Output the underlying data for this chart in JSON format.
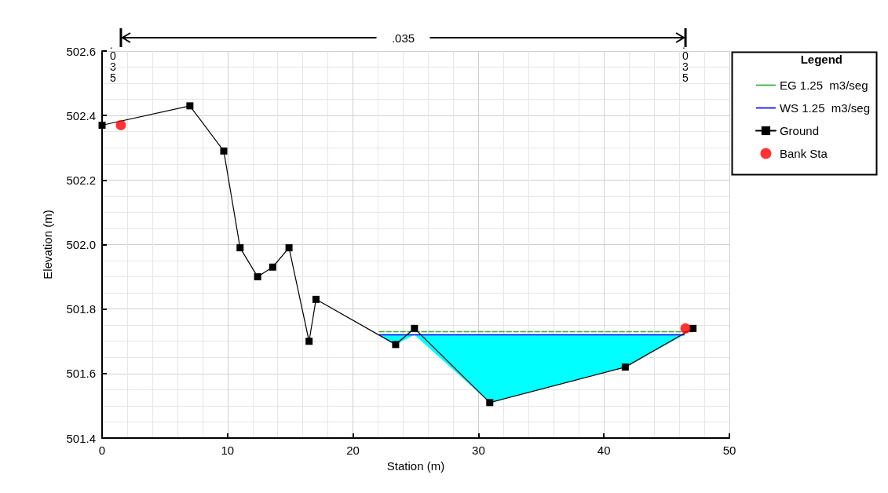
{
  "chart_data": {
    "type": "line",
    "xlabel": "Station (m)",
    "ylabel": "Elevation (m)",
    "legend_title": "Legend",
    "legend": "top right",
    "grid": true,
    "xlim": [
      0,
      50
    ],
    "xticks": [
      0,
      10,
      20,
      30,
      40,
      50
    ],
    "ylim": [
      501.4,
      502.6
    ],
    "yticks": [
      501.4,
      501.6,
      501.8,
      {
        "value": 502,
        "label": "502.0"
      },
      502.2,
      502.4,
      502.6
    ],
    "annotations": [
      ".035",
      ".035",
      ".035"
    ],
    "series": [
      {
        "name": "EG 1.25  m3/seg",
        "color": "#33aa33",
        "line_style": "dashed",
        "marker": "none",
        "x": [
          22.1,
          47.1
        ],
        "values": [
          501.73,
          501.73
        ]
      },
      {
        "name": "WS 1.25  m3/seg",
        "color": "#0000ff",
        "line_style": "solid",
        "marker": "none",
        "x": [
          22.1,
          23.4,
          24.9,
          30.9,
          41.7,
          46.4
        ],
        "values": [
          501.72,
          501.72,
          501.72,
          501.72,
          501.72,
          501.72
        ],
        "lower": [
          501.72,
          501.69,
          501.72,
          501.51,
          501.62,
          501.72
        ],
        "upper": [
          501.72,
          501.72,
          501.72,
          501.72,
          501.72,
          501.72
        ]
      },
      {
        "name": "Ground",
        "color": "#000000",
        "line_style": "solid",
        "marker": "square",
        "x": [
          0,
          7.0,
          9.7,
          11.0,
          12.4,
          13.6,
          14.9,
          16.5,
          17.05,
          23.4,
          24.9,
          30.9,
          41.7,
          47.1
        ],
        "values": [
          502.37,
          502.43,
          502.29,
          501.99,
          501.9,
          501.93,
          501.99,
          501.7,
          501.83,
          501.69,
          501.74,
          501.51,
          501.62,
          501.74
        ]
      },
      {
        "name": "Bank Sta",
        "type": "scatter",
        "color": "#ff0000",
        "marker": "circle",
        "x": [
          1.5,
          46.5
        ],
        "values": [
          502.37,
          501.74
        ]
      }
    ]
  }
}
